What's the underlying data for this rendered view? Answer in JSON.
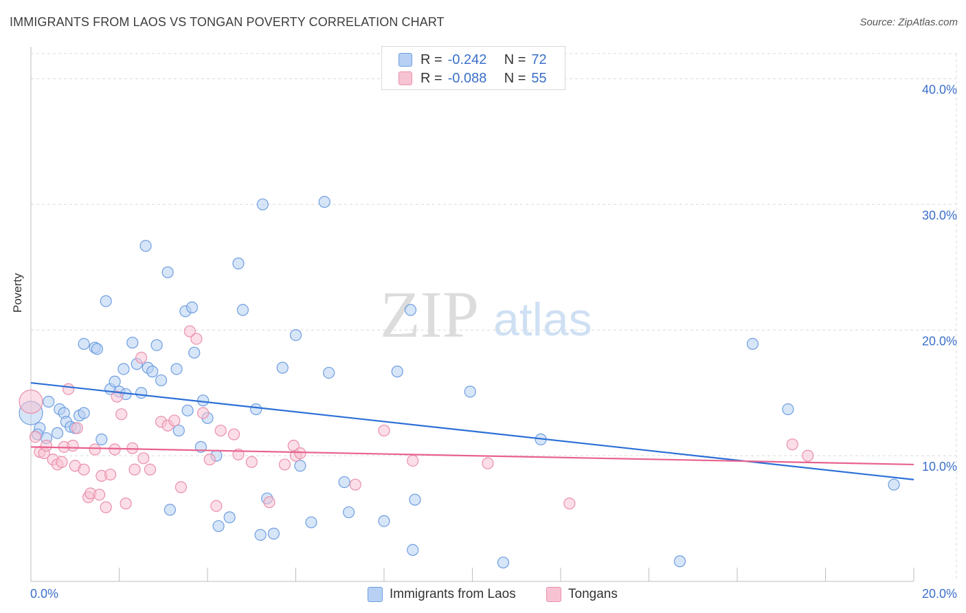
{
  "title": "IMMIGRANTS FROM LAOS VS TONGAN POVERTY CORRELATION CHART",
  "source": "Source: ZipAtlas.com",
  "watermark": {
    "zip": "ZIP",
    "atlas": "atlas"
  },
  "legend": {
    "rows": [
      {
        "r_label": "R =",
        "r_value": "-0.242",
        "n_label": "N =",
        "n_value": "72"
      },
      {
        "r_label": "R =",
        "r_value": "-0.088",
        "n_label": "N =",
        "n_value": "55"
      }
    ]
  },
  "colors": {
    "series1_fill": "#b7d0f3",
    "series1_stroke": "#6d9ee0",
    "series1_line": "#2b6fd6",
    "series2_fill": "#f7c3d3",
    "series2_stroke": "#ea8fab",
    "series2_line": "#e8628e",
    "grid": "#d9d9d9",
    "axis_text": "#3a6fc9"
  },
  "chart_data": {
    "type": "scatter",
    "title": "IMMIGRANTS FROM LAOS VS TONGAN POVERTY CORRELATION CHART",
    "xlabel": "",
    "ylabel": "Poverty",
    "xlim": [
      0,
      20
    ],
    "ylim": [
      0,
      42
    ],
    "x_tick_labels": [
      {
        "value": 0,
        "label": "0.0%"
      },
      {
        "value": 20,
        "label": "20.0%"
      }
    ],
    "y_tick_labels": [
      {
        "value": 10,
        "label": "10.0%"
      },
      {
        "value": 20,
        "label": "20.0%"
      },
      {
        "value": 30,
        "label": "30.0%"
      },
      {
        "value": 40,
        "label": "40.0%"
      }
    ],
    "grid": true,
    "legend_position": "top-center",
    "series": [
      {
        "name": "Immigrants from Laos",
        "trend": {
          "x": [
            0,
            20
          ],
          "y": [
            15.8,
            8.1
          ]
        },
        "points": [
          {
            "x": 0.0,
            "y": 13.4,
            "big": true
          },
          {
            "x": 0.2,
            "y": 12.2
          },
          {
            "x": 0.15,
            "y": 11.7
          },
          {
            "x": 0.4,
            "y": 14.3
          },
          {
            "x": 0.35,
            "y": 11.4
          },
          {
            "x": 0.6,
            "y": 11.8
          },
          {
            "x": 0.65,
            "y": 13.7
          },
          {
            "x": 0.75,
            "y": 13.4
          },
          {
            "x": 0.8,
            "y": 12.7
          },
          {
            "x": 0.9,
            "y": 12.3
          },
          {
            "x": 1.0,
            "y": 12.2
          },
          {
            "x": 1.1,
            "y": 13.2
          },
          {
            "x": 1.2,
            "y": 13.4
          },
          {
            "x": 1.2,
            "y": 18.9
          },
          {
            "x": 1.45,
            "y": 18.6
          },
          {
            "x": 1.5,
            "y": 18.5
          },
          {
            "x": 1.6,
            "y": 11.3
          },
          {
            "x": 1.7,
            "y": 22.3
          },
          {
            "x": 1.8,
            "y": 15.3
          },
          {
            "x": 1.9,
            "y": 15.9
          },
          {
            "x": 2.0,
            "y": 15.1
          },
          {
            "x": 2.1,
            "y": 16.9
          },
          {
            "x": 2.15,
            "y": 14.9
          },
          {
            "x": 2.3,
            "y": 19.0
          },
          {
            "x": 2.4,
            "y": 17.3
          },
          {
            "x": 2.5,
            "y": 15.0
          },
          {
            "x": 2.6,
            "y": 26.7
          },
          {
            "x": 2.65,
            "y": 17.0
          },
          {
            "x": 2.75,
            "y": 16.7
          },
          {
            "x": 2.85,
            "y": 18.8
          },
          {
            "x": 2.95,
            "y": 16.0
          },
          {
            "x": 3.1,
            "y": 24.6
          },
          {
            "x": 3.15,
            "y": 5.7
          },
          {
            "x": 3.3,
            "y": 16.9
          },
          {
            "x": 3.35,
            "y": 12.0
          },
          {
            "x": 3.5,
            "y": 21.5
          },
          {
            "x": 3.55,
            "y": 13.6
          },
          {
            "x": 3.65,
            "y": 21.8
          },
          {
            "x": 3.7,
            "y": 18.2
          },
          {
            "x": 3.85,
            "y": 10.7
          },
          {
            "x": 3.9,
            "y": 14.4
          },
          {
            "x": 4.0,
            "y": 13.0
          },
          {
            "x": 4.2,
            "y": 10.0
          },
          {
            "x": 4.25,
            "y": 4.4
          },
          {
            "x": 4.5,
            "y": 5.1
          },
          {
            "x": 4.7,
            "y": 25.3
          },
          {
            "x": 4.8,
            "y": 21.6
          },
          {
            "x": 5.1,
            "y": 13.7
          },
          {
            "x": 5.2,
            "y": 3.7
          },
          {
            "x": 5.25,
            "y": 30.0
          },
          {
            "x": 5.35,
            "y": 6.6
          },
          {
            "x": 5.5,
            "y": 3.8
          },
          {
            "x": 5.7,
            "y": 17.0
          },
          {
            "x": 6.0,
            "y": 19.6
          },
          {
            "x": 6.1,
            "y": 9.2
          },
          {
            "x": 6.35,
            "y": 4.7
          },
          {
            "x": 6.65,
            "y": 30.2
          },
          {
            "x": 6.75,
            "y": 16.6
          },
          {
            "x": 7.1,
            "y": 7.9
          },
          {
            "x": 7.2,
            "y": 5.5
          },
          {
            "x": 8.0,
            "y": 4.8
          },
          {
            "x": 8.3,
            "y": 16.7
          },
          {
            "x": 8.6,
            "y": 21.6
          },
          {
            "x": 8.65,
            "y": 2.5
          },
          {
            "x": 8.7,
            "y": 6.5
          },
          {
            "x": 9.95,
            "y": 15.1
          },
          {
            "x": 10.7,
            "y": 1.5
          },
          {
            "x": 11.55,
            "y": 11.3
          },
          {
            "x": 14.7,
            "y": 1.6
          },
          {
            "x": 16.35,
            "y": 18.9
          },
          {
            "x": 17.15,
            "y": 13.7
          },
          {
            "x": 19.55,
            "y": 7.7
          }
        ]
      },
      {
        "name": "Tongans",
        "trend": {
          "x": [
            0,
            20
          ],
          "y": [
            10.7,
            9.3
          ]
        },
        "points": [
          {
            "x": 0.0,
            "y": 14.3,
            "big": true
          },
          {
            "x": 0.1,
            "y": 11.5
          },
          {
            "x": 0.2,
            "y": 10.3
          },
          {
            "x": 0.3,
            "y": 10.2
          },
          {
            "x": 0.35,
            "y": 10.8
          },
          {
            "x": 0.5,
            "y": 9.7
          },
          {
            "x": 0.6,
            "y": 9.3
          },
          {
            "x": 0.7,
            "y": 9.5
          },
          {
            "x": 0.75,
            "y": 10.7
          },
          {
            "x": 0.85,
            "y": 15.3
          },
          {
            "x": 0.95,
            "y": 10.8
          },
          {
            "x": 1.0,
            "y": 9.2
          },
          {
            "x": 1.05,
            "y": 12.2
          },
          {
            "x": 1.2,
            "y": 8.9
          },
          {
            "x": 1.3,
            "y": 6.7
          },
          {
            "x": 1.35,
            "y": 7.0
          },
          {
            "x": 1.45,
            "y": 10.5
          },
          {
            "x": 1.55,
            "y": 6.9
          },
          {
            "x": 1.6,
            "y": 8.4
          },
          {
            "x": 1.7,
            "y": 5.9
          },
          {
            "x": 1.8,
            "y": 8.5
          },
          {
            "x": 1.9,
            "y": 10.5
          },
          {
            "x": 1.95,
            "y": 14.7
          },
          {
            "x": 2.05,
            "y": 13.3
          },
          {
            "x": 2.15,
            "y": 6.2
          },
          {
            "x": 2.3,
            "y": 10.6
          },
          {
            "x": 2.35,
            "y": 8.9
          },
          {
            "x": 2.5,
            "y": 17.8
          },
          {
            "x": 2.55,
            "y": 9.8
          },
          {
            "x": 2.7,
            "y": 8.9
          },
          {
            "x": 2.95,
            "y": 12.7
          },
          {
            "x": 3.1,
            "y": 12.4
          },
          {
            "x": 3.25,
            "y": 12.8
          },
          {
            "x": 3.4,
            "y": 7.5
          },
          {
            "x": 3.6,
            "y": 19.9
          },
          {
            "x": 3.75,
            "y": 19.3
          },
          {
            "x": 3.9,
            "y": 13.4
          },
          {
            "x": 4.05,
            "y": 9.7
          },
          {
            "x": 4.2,
            "y": 6.0
          },
          {
            "x": 4.3,
            "y": 12.0
          },
          {
            "x": 4.6,
            "y": 11.7
          },
          {
            "x": 4.7,
            "y": 10.1
          },
          {
            "x": 5.0,
            "y": 9.5
          },
          {
            "x": 5.4,
            "y": 6.3
          },
          {
            "x": 5.75,
            "y": 9.3
          },
          {
            "x": 5.95,
            "y": 10.8
          },
          {
            "x": 6.0,
            "y": 10.0
          },
          {
            "x": 6.1,
            "y": 10.2
          },
          {
            "x": 7.35,
            "y": 7.7
          },
          {
            "x": 8.0,
            "y": 12.0
          },
          {
            "x": 8.65,
            "y": 9.6
          },
          {
            "x": 10.35,
            "y": 9.4
          },
          {
            "x": 12.2,
            "y": 6.2
          },
          {
            "x": 17.25,
            "y": 10.9
          },
          {
            "x": 17.6,
            "y": 10.0
          }
        ]
      }
    ]
  }
}
